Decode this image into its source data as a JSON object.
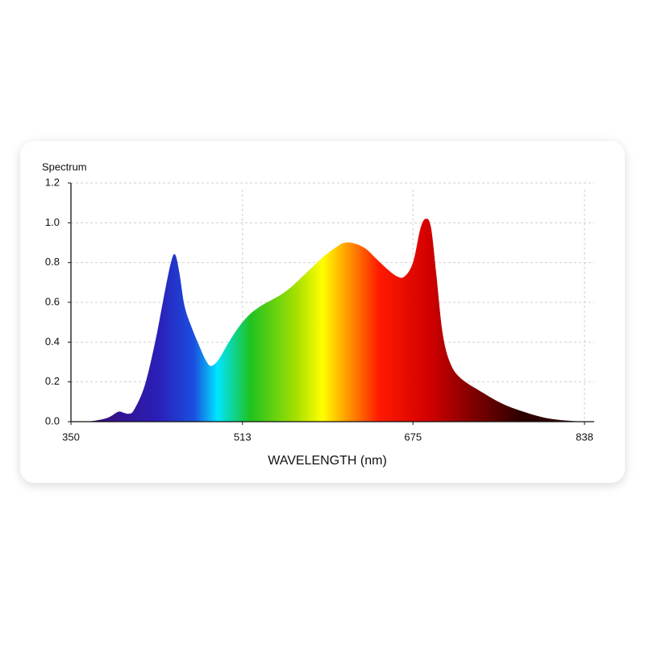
{
  "chart_data": {
    "type": "area",
    "y_label": "Spectrum",
    "x_label": "WAVELENGTH (nm)",
    "x": [
      350,
      370,
      385,
      395,
      400,
      405,
      410,
      420,
      430,
      438,
      445,
      449,
      453,
      458,
      465,
      472,
      478,
      483,
      490,
      500,
      510,
      520,
      530,
      540,
      550,
      560,
      570,
      580,
      590,
      600,
      610,
      620,
      630,
      640,
      650,
      660,
      667,
      675,
      682,
      687,
      692,
      697,
      703,
      710,
      720,
      740,
      760,
      780,
      800,
      820,
      838
    ],
    "values": [
      0,
      0.003,
      0.02,
      0.05,
      0.045,
      0.04,
      0.06,
      0.18,
      0.4,
      0.62,
      0.8,
      0.84,
      0.75,
      0.58,
      0.47,
      0.38,
      0.31,
      0.28,
      0.31,
      0.4,
      0.48,
      0.54,
      0.58,
      0.61,
      0.64,
      0.68,
      0.73,
      0.78,
      0.83,
      0.87,
      0.9,
      0.895,
      0.87,
      0.82,
      0.77,
      0.73,
      0.73,
      0.8,
      0.97,
      1.02,
      0.98,
      0.75,
      0.45,
      0.3,
      0.22,
      0.15,
      0.09,
      0.05,
      0.02,
      0.006,
      0
    ],
    "xlim": [
      350,
      838
    ],
    "xticks": [
      350,
      513,
      675,
      838
    ],
    "ylim": [
      0,
      1.2
    ],
    "yticks": [
      {
        "value": 0,
        "label": "0.0"
      },
      0.2,
      0.4,
      0.6,
      0.8,
      {
        "value": 1,
        "label": "1.0"
      },
      1.2
    ],
    "grid": true
  }
}
